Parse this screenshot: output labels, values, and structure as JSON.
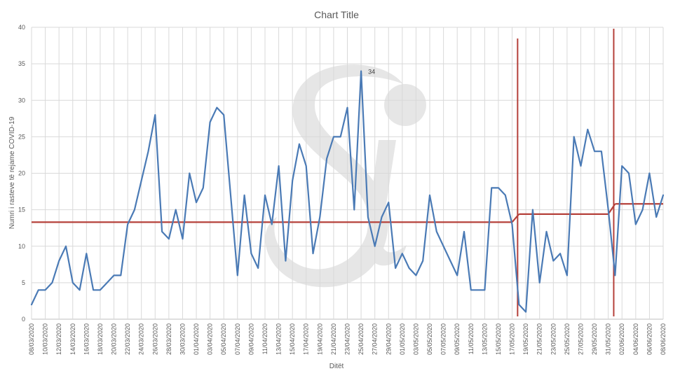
{
  "chart_data": {
    "type": "line",
    "title": "Chart Title",
    "xlabel": "Ditët",
    "ylabel": "Numri i rasteve të rejame COVID-19",
    "ylim": [
      0,
      40
    ],
    "yticks": [
      0,
      5,
      10,
      15,
      20,
      25,
      30,
      35,
      40
    ],
    "grid": true,
    "legend": "none",
    "x": [
      "08/03/2020",
      "09/03/2020",
      "10/03/2020",
      "11/03/2020",
      "12/03/2020",
      "13/03/2020",
      "14/03/2020",
      "15/03/2020",
      "16/03/2020",
      "17/03/2020",
      "18/03/2020",
      "19/03/2020",
      "20/03/2020",
      "21/03/2020",
      "22/03/2020",
      "23/03/2020",
      "24/03/2020",
      "25/03/2020",
      "26/03/2020",
      "27/03/2020",
      "28/03/2020",
      "29/03/2020",
      "30/03/2020",
      "31/03/2020",
      "01/04/2020",
      "02/04/2020",
      "03/04/2020",
      "04/04/2020",
      "05/04/2020",
      "06/04/2020",
      "07/04/2020",
      "08/04/2020",
      "09/04/2020",
      "10/04/2020",
      "11/04/2020",
      "12/04/2020",
      "13/04/2020",
      "14/04/2020",
      "15/04/2020",
      "16/04/2020",
      "17/04/2020",
      "18/04/2020",
      "19/04/2020",
      "20/04/2020",
      "21/04/2020",
      "22/04/2020",
      "23/04/2020",
      "24/04/2020",
      "25/04/2020",
      "26/04/2020",
      "27/04/2020",
      "28/04/2020",
      "29/04/2020",
      "30/04/2020",
      "01/05/2020",
      "02/05/2020",
      "03/05/2020",
      "04/05/2020",
      "05/05/2020",
      "06/05/2020",
      "07/05/2020",
      "08/05/2020",
      "09/05/2020",
      "10/05/2020",
      "11/05/2020",
      "12/05/2020",
      "13/05/2020",
      "14/05/2020",
      "15/05/2020",
      "16/05/2020",
      "17/05/2020",
      "18/05/2020",
      "19/05/2020",
      "20/05/2020",
      "21/05/2020",
      "22/05/2020",
      "23/05/2020",
      "24/05/2020",
      "25/05/2020",
      "26/05/2020",
      "27/05/2020",
      "28/05/2020",
      "29/05/2020",
      "30/05/2020",
      "31/05/2020",
      "01/06/2020",
      "02/06/2020",
      "03/06/2020",
      "04/06/2020",
      "05/06/2020",
      "06/06/2020",
      "07/06/2020",
      "08/06/2020"
    ],
    "series": [
      {
        "color": "#4a7ab5",
        "values": [
          2,
          4,
          4,
          5,
          8,
          10,
          5,
          4,
          9,
          4,
          4,
          5,
          6,
          6,
          13,
          15,
          19,
          23,
          28,
          12,
          11,
          15,
          11,
          20,
          16,
          18,
          27,
          29,
          28,
          17,
          6,
          17,
          9,
          7,
          17,
          13,
          21,
          8,
          19,
          24,
          21,
          9,
          14,
          22,
          25,
          25,
          29,
          15,
          34,
          14,
          10,
          14,
          16,
          7,
          9,
          7,
          6,
          8,
          17,
          12,
          10,
          8,
          6,
          12,
          4,
          4,
          4,
          18,
          18,
          17,
          13,
          2,
          1,
          15,
          5,
          12,
          8,
          9,
          6,
          25,
          21,
          26,
          23,
          23,
          15,
          6,
          21,
          20,
          13,
          15,
          20,
          14,
          17
        ]
      },
      {
        "color": "#b5403a",
        "kind": "threshold",
        "segments": [
          {
            "from": "08/03/2020",
            "to": "17/05/2020",
            "value": 13.3
          },
          {
            "from": "18/05/2020",
            "to": "31/05/2020",
            "value": 14.4
          },
          {
            "from": "01/06/2020",
            "to": "08/06/2020",
            "value": 15.8
          }
        ],
        "vertical_lines": [
          "18/05/2020",
          "01/06/2020"
        ]
      }
    ],
    "annotations": [
      {
        "x": "25/04/2020",
        "y": 34,
        "text": "34"
      }
    ]
  }
}
